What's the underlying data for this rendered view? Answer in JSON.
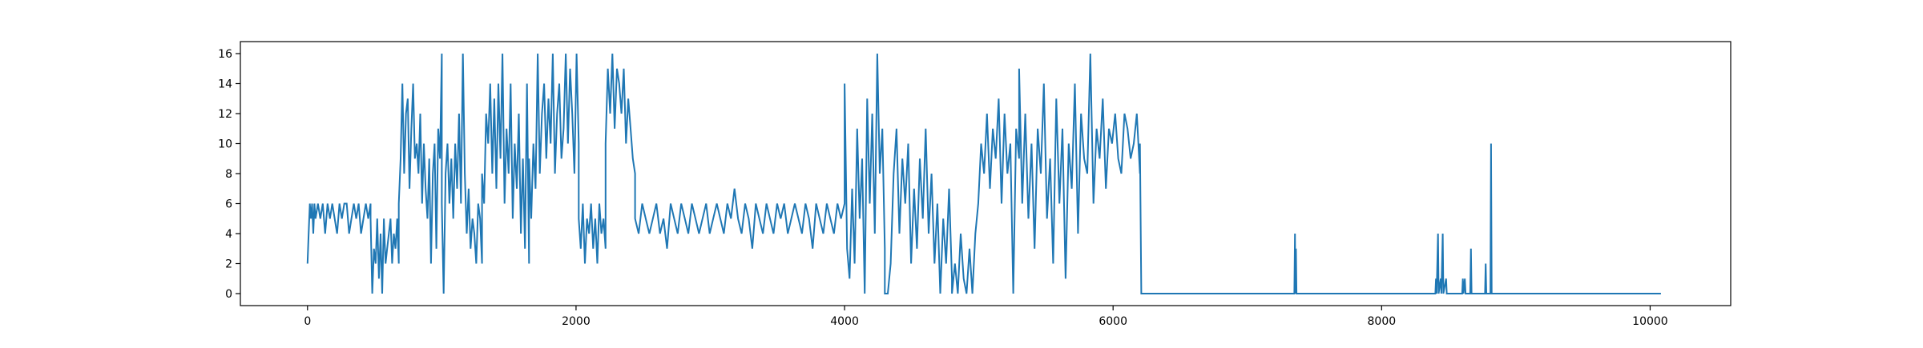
{
  "chart_data": {
    "type": "line",
    "title": "",
    "xlabel": "",
    "ylabel": "",
    "xlim": [
      -500,
      10600
    ],
    "ylim": [
      -0.8,
      16.8
    ],
    "xticks": [
      0,
      2000,
      4000,
      6000,
      8000,
      10000
    ],
    "yticks": [
      0,
      2,
      4,
      6,
      8,
      10,
      12,
      14,
      16
    ],
    "grid": false,
    "legend": "none",
    "line_color": "#1f77b4",
    "series": [
      {
        "segments": [
          {
            "x0": 0,
            "x1": 60,
            "y": [
              2,
              4,
              6,
              5,
              6,
              4,
              6,
              5
            ]
          },
          {
            "x0": 60,
            "x1": 470,
            "y": [
              5,
              6,
              5,
              6,
              4,
              6,
              5,
              6,
              5,
              4,
              6,
              5,
              6,
              6,
              4,
              5,
              6,
              5,
              6,
              4,
              5,
              6,
              5,
              6
            ]
          },
          {
            "x0": 470,
            "x1": 680,
            "y": [
              5,
              0,
              3,
              2,
              5,
              1,
              4,
              0,
              5,
              2,
              3,
              4,
              5,
              2,
              4,
              3,
              5,
              2
            ]
          },
          {
            "x0": 680,
            "x1": 1000,
            "y": [
              6,
              9,
              14,
              8,
              12,
              13,
              7,
              11,
              14,
              9,
              10,
              8,
              12,
              6,
              10,
              7,
              5,
              9,
              2,
              8,
              10,
              3,
              11,
              9,
              16
            ]
          },
          {
            "x0": 1000,
            "x1": 1300,
            "y": [
              6,
              0,
              8,
              10,
              6,
              9,
              5,
              10,
              7,
              12,
              6,
              16,
              8,
              4,
              7,
              3,
              5,
              4,
              2,
              6,
              5,
              2
            ]
          },
          {
            "x0": 1300,
            "x1": 1650,
            "y": [
              8,
              6,
              12,
              10,
              14,
              8,
              13,
              7,
              14,
              9,
              16,
              6,
              11,
              8,
              14,
              5,
              10,
              7,
              12,
              4,
              9,
              3,
              14,
              2
            ]
          },
          {
            "x0": 1650,
            "x1": 2020,
            "y": [
              9,
              5,
              10,
              7,
              16,
              8,
              12,
              14,
              9,
              13,
              10,
              16,
              8,
              12,
              14,
              9,
              11,
              16,
              10,
              15,
              12,
              8,
              16,
              10
            ]
          },
          {
            "x0": 2020,
            "x1": 2220,
            "y": [
              5,
              3,
              6,
              2,
              5,
              4,
              6,
              3,
              5,
              2,
              6,
              4,
              5,
              3
            ]
          },
          {
            "x0": 2220,
            "x1": 2440,
            "y": [
              10,
              15,
              12,
              16,
              11,
              15,
              14,
              12,
              15,
              10,
              13,
              11,
              9,
              8
            ]
          },
          {
            "x0": 2440,
            "x1": 4000,
            "y": [
              5,
              4,
              6,
              5,
              4,
              5,
              6,
              4,
              5,
              3,
              6,
              5,
              4,
              6,
              5,
              4,
              6,
              5,
              4,
              5,
              6,
              4,
              5,
              6,
              5,
              4,
              6,
              5,
              7,
              5,
              4,
              6,
              5,
              3,
              6,
              5,
              4,
              6,
              5,
              4,
              6,
              5,
              6,
              4,
              5,
              6,
              5,
              4,
              6,
              5,
              3,
              6,
              5,
              4,
              6,
              5,
              4,
              6,
              5,
              6
            ]
          },
          {
            "x0": 4000,
            "x1": 4300,
            "y": [
              14,
              3,
              1,
              7,
              2,
              11,
              5,
              9,
              0,
              13,
              6,
              12,
              4,
              16,
              8,
              11,
              3
            ]
          },
          {
            "x0": 4300,
            "x1": 4800,
            "y": [
              0,
              0,
              2,
              8,
              11,
              4,
              9,
              6,
              10,
              2,
              7,
              3,
              9,
              5,
              11,
              4,
              8,
              2,
              6,
              0,
              5,
              2,
              7,
              1
            ]
          },
          {
            "x0": 4800,
            "x1": 5300,
            "y": [
              0,
              2,
              0,
              4,
              1,
              0,
              3,
              0,
              4,
              6,
              10,
              8,
              12,
              7,
              11,
              9,
              13,
              6,
              12,
              8,
              10,
              0,
              11,
              9
            ]
          },
          {
            "x0": 5300,
            "x1": 6200,
            "y": [
              15,
              6,
              12,
              5,
              10,
              3,
              11,
              8,
              14,
              5,
              9,
              2,
              13,
              6,
              11,
              1,
              10,
              7,
              14,
              4,
              12,
              9,
              8,
              16,
              6,
              11,
              9,
              13,
              7,
              11,
              10,
              12,
              9,
              8,
              12,
              11,
              9,
              10,
              12,
              8
            ]
          }
        ],
        "points": [
          [
            6200,
            10
          ],
          [
            6210,
            0
          ],
          [
            7350,
            0
          ],
          [
            7355,
            4
          ],
          [
            7358,
            0
          ],
          [
            7362,
            3
          ],
          [
            7366,
            0
          ],
          [
            8400,
            0
          ],
          [
            8405,
            1
          ],
          [
            8410,
            0
          ],
          [
            8420,
            4
          ],
          [
            8425,
            0
          ],
          [
            8440,
            1
          ],
          [
            8445,
            0
          ],
          [
            8455,
            4
          ],
          [
            8460,
            0
          ],
          [
            8480,
            1
          ],
          [
            8485,
            0
          ],
          [
            8600,
            0
          ],
          [
            8605,
            1
          ],
          [
            8610,
            0
          ],
          [
            8620,
            1
          ],
          [
            8625,
            0
          ],
          [
            8660,
            0
          ],
          [
            8665,
            3
          ],
          [
            8670,
            0
          ],
          [
            8770,
            0
          ],
          [
            8775,
            2
          ],
          [
            8780,
            0
          ],
          [
            8810,
            0
          ],
          [
            8815,
            10
          ],
          [
            8820,
            0
          ],
          [
            10080,
            0
          ]
        ]
      }
    ]
  }
}
